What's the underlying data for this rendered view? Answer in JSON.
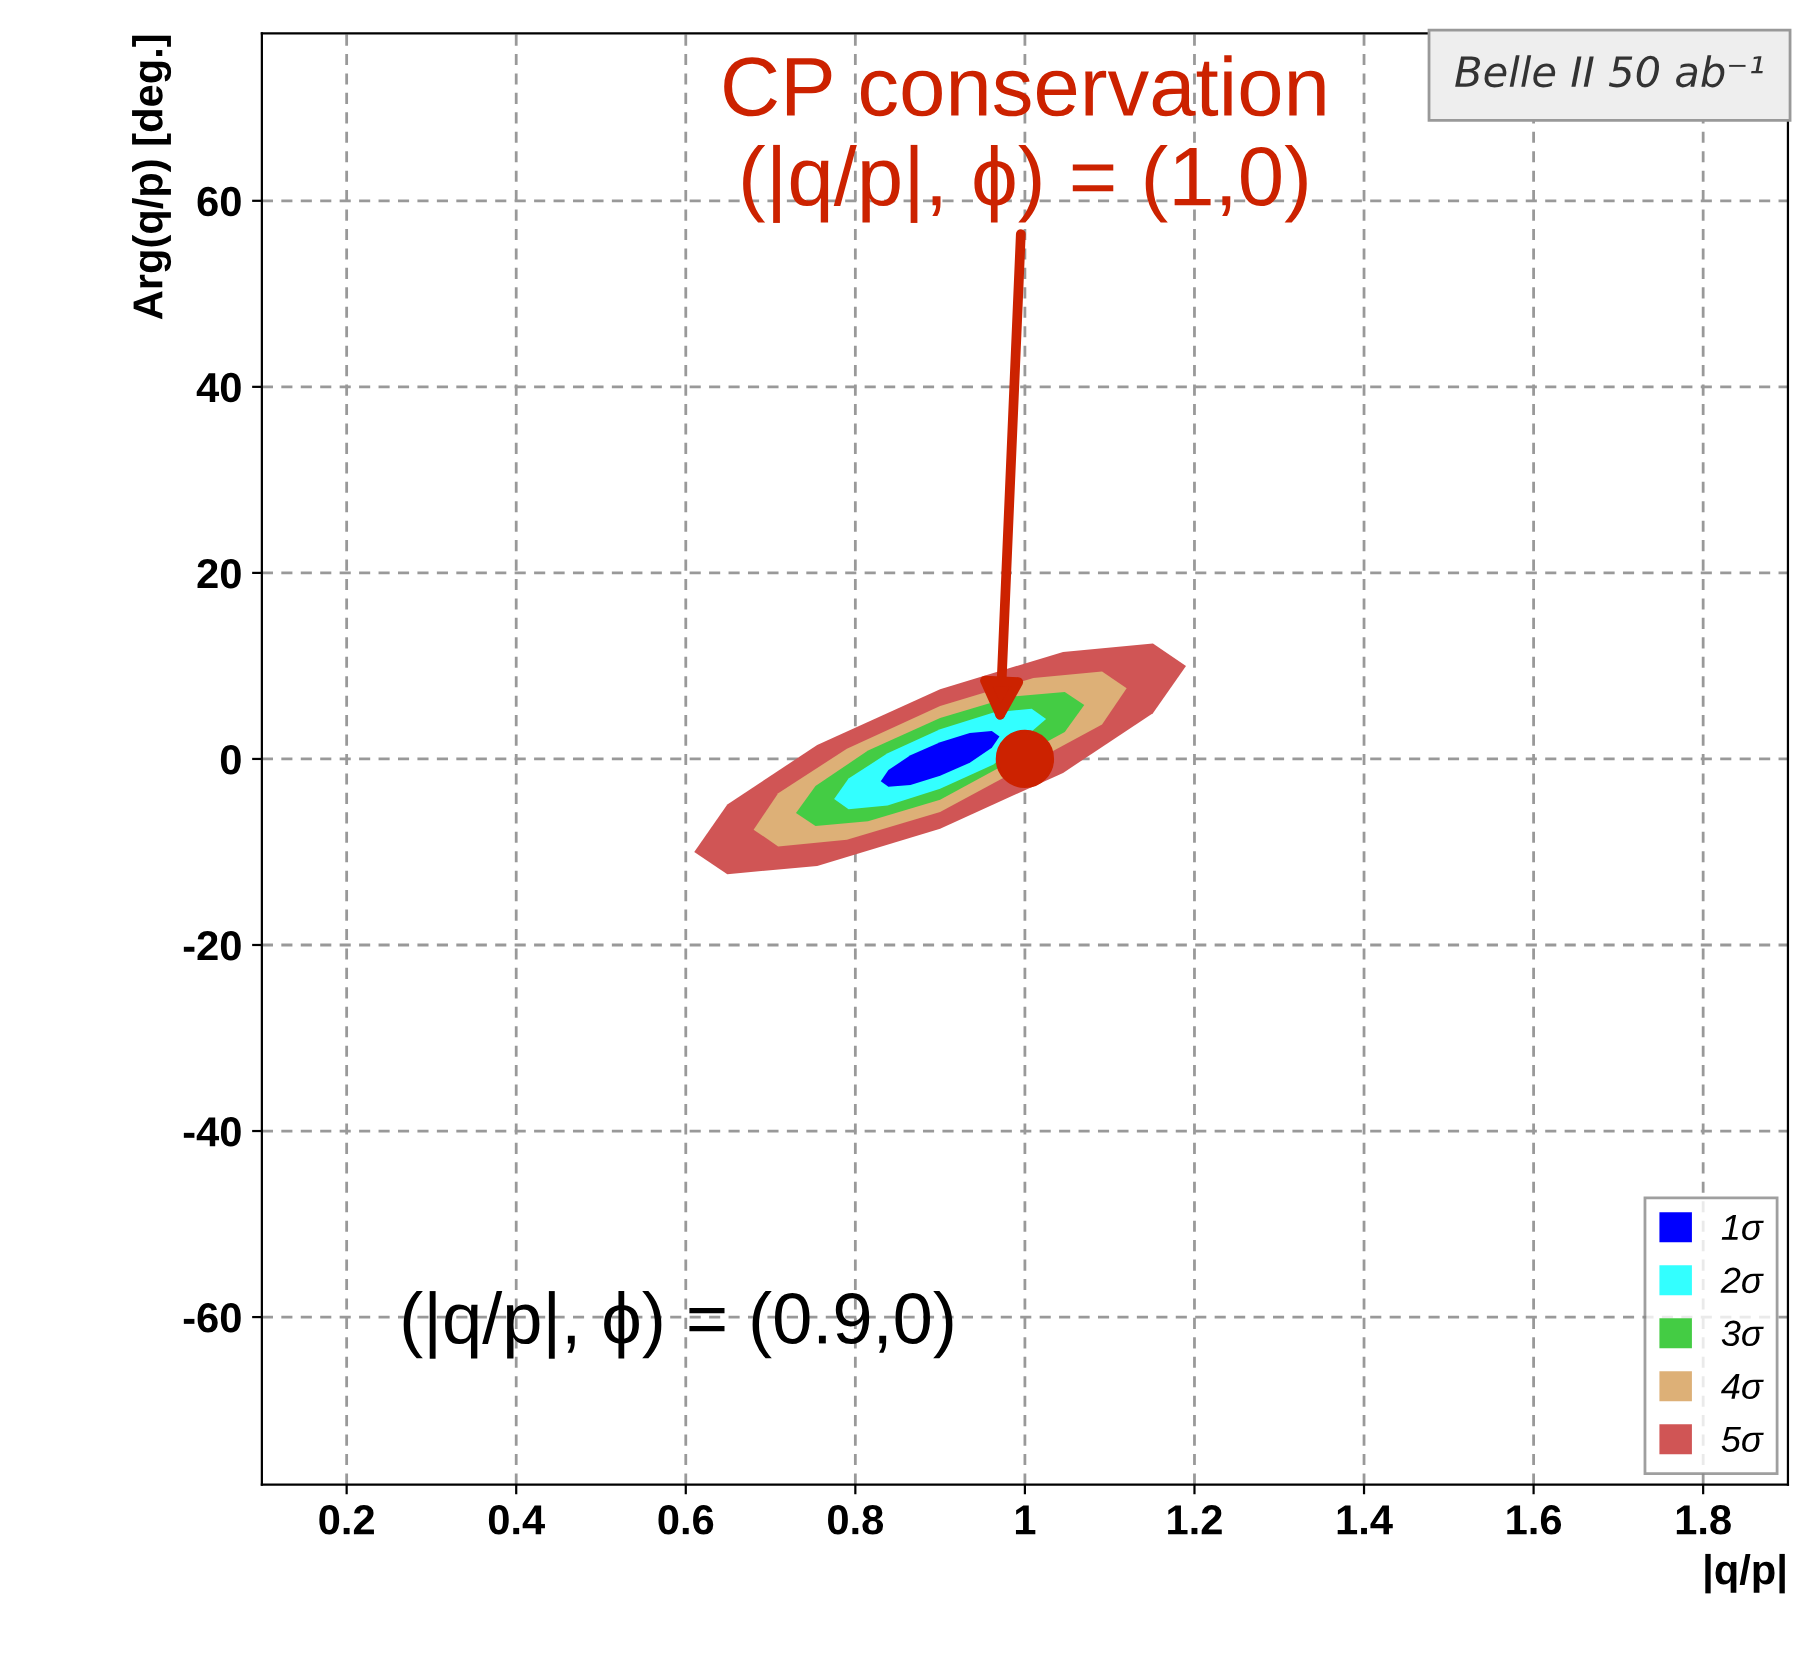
{
  "chart_data": {
    "type": "area",
    "xlabel": "|q/p|",
    "ylabel": "Arg(q/p) [deg.]",
    "xlim": [
      0.1,
      1.9
    ],
    "ylim": [
      -78,
      78
    ],
    "xticks": [
      0.2,
      0.4,
      0.6,
      0.8,
      1,
      1.2,
      1.4,
      1.6,
      1.8
    ],
    "yticks": [
      -60,
      -40,
      -20,
      0,
      20,
      40,
      60
    ],
    "grid": true,
    "legend": "bottom right",
    "series": [
      {
        "name": "1σ",
        "color": "#0000ff",
        "x": [
          0.97,
          0.961,
          0.935,
          0.9,
          0.865,
          0.839,
          0.83,
          0.839,
          0.865,
          0.9,
          0.935,
          0.961
        ],
        "values": [
          2.4,
          3.0,
          2.8,
          1.8,
          0.4,
          -1.2,
          -2.4,
          -3.0,
          -2.8,
          -1.8,
          -0.4,
          1.2
        ]
      },
      {
        "name": "2σ",
        "color": "#33ffff",
        "x": [
          1.025,
          1.008,
          0.963,
          0.9,
          0.838,
          0.792,
          0.775,
          0.792,
          0.838,
          0.9,
          0.963,
          null
        ],
        "values": [
          4.3,
          5.4,
          5.0,
          3.2,
          0.6,
          -2.1,
          -4.3,
          -5.4,
          -5.0,
          -3.2,
          -0.6,
          null
        ]
      },
      {
        "name": "3σ",
        "color": "#44cc44",
        "x": [
          1.07,
          1.047,
          0.985,
          0.9,
          0.815,
          0.753,
          0.73,
          0.753,
          0.815,
          0.9,
          null,
          1.047
        ],
        "values": [
          5.8,
          7.2,
          6.7,
          4.4,
          0.9,
          -2.9,
          -5.8,
          -7.2,
          -6.7,
          -4.4,
          null,
          2.9
        ]
      },
      {
        "name": "4σ",
        "color": "#ddb077",
        "x": [
          1.12,
          1.091,
          1.01,
          0.9,
          0.79,
          0.709,
          0.68,
          0.709,
          0.79,
          0.9,
          null,
          1.091
        ],
        "values": [
          7.6,
          9.4,
          8.7,
          5.7,
          1.1,
          -3.7,
          -7.6,
          -9.4,
          -8.7,
          -5.7,
          null,
          3.7
        ]
      },
      {
        "name": "5σ",
        "color": "#d05555",
        "x": [
          1.19,
          1.151,
          1.045,
          0.9,
          0.755,
          0.649,
          0.61,
          0.649,
          0.755,
          0.9,
          1.045,
          1.151
        ],
        "values": [
          10.0,
          12.4,
          11.5,
          7.5,
          1.5,
          -4.9,
          -10.0,
          -12.4,
          -11.5,
          -7.5,
          -1.5,
          4.9
        ]
      },
      {
        "type": "scatter",
        "color": "#cc2200",
        "marker": "circle",
        "x": [
          1
        ],
        "values": [
          0
        ]
      }
    ],
    "annotations": [
      {
        "text": "CP conservation\n(|q/p|, ϕ) = (1,0)",
        "x": 0.97,
        "y": 3
      },
      "(|q/p|, ϕ) = (0.9,0)",
      "Belle II 50 ab⁻¹"
    ]
  }
}
